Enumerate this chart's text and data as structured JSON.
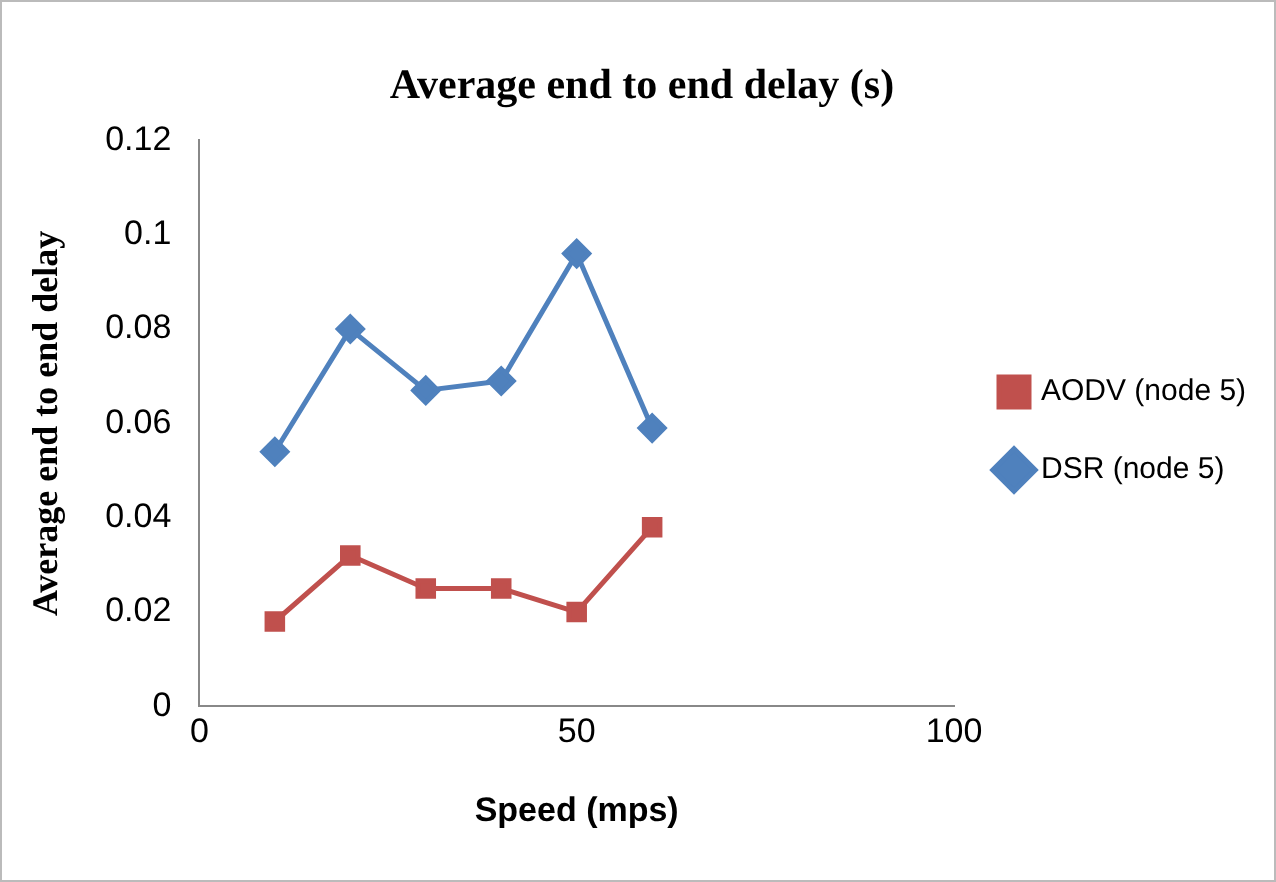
{
  "chart_data": {
    "type": "line",
    "title": "Average end to end delay (s)",
    "xlabel": "Speed (mps)",
    "ylabel": "Average end to end delay",
    "x": [
      10,
      20,
      30,
      40,
      50,
      60
    ],
    "series": [
      {
        "name": "AODV (node 5)",
        "color": "#c0504d",
        "marker": "square",
        "values": [
          0.018,
          0.032,
          0.025,
          0.025,
          0.02,
          0.038
        ]
      },
      {
        "name": "DSR (node 5)",
        "color": "#4f81bd",
        "marker": "diamond",
        "values": [
          0.054,
          0.08,
          0.067,
          0.069,
          0.096,
          0.059
        ]
      }
    ],
    "xlim": [
      0,
      100
    ],
    "xticks": [
      0,
      50,
      100
    ],
    "ylim": [
      0,
      0.12
    ],
    "yticks": [
      0,
      0.02,
      0.04,
      0.06,
      0.08,
      0.1,
      0.12
    ],
    "grid": false,
    "legend": "right",
    "line_style": "solid"
  }
}
